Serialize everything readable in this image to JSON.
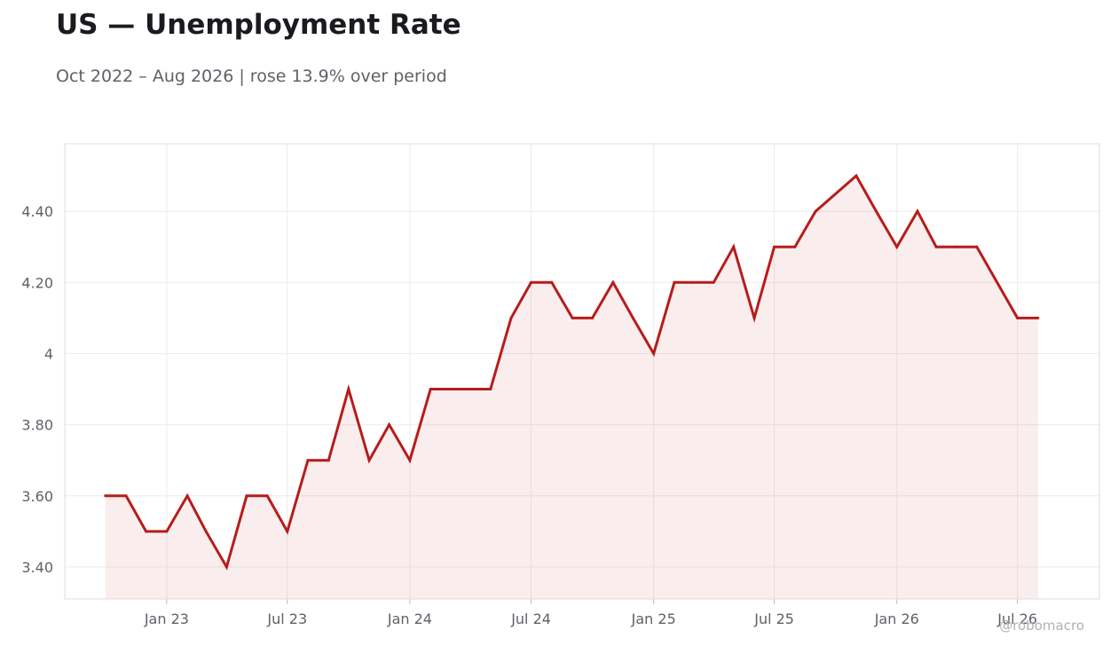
{
  "title": "US — Unemployment Rate",
  "subtitle": "Oct 2022 – Aug 2026 | rose 13.9% over period",
  "watermark": "@robomacro",
  "colors": {
    "line": "#b71c1c",
    "fill": "#b71c1c",
    "grid": "#ececec",
    "frame": "#dddddd",
    "text": "#60606a"
  },
  "chart_data": {
    "type": "area",
    "title": "US — Unemployment Rate",
    "subtitle": "Oct 2022 – Aug 2026 | rose 13.9% over period",
    "xlabel": "",
    "ylabel": "",
    "ylim": [
      3.31,
      4.59
    ],
    "xlim": [
      "2022-08-01",
      "2026-11-01"
    ],
    "grid": true,
    "legend": "none",
    "x_ticks": [
      {
        "date": "2023-01-01",
        "label": "Jan 23"
      },
      {
        "date": "2023-07-01",
        "label": "Jul 23"
      },
      {
        "date": "2024-01-01",
        "label": "Jan 24"
      },
      {
        "date": "2024-07-01",
        "label": "Jul 24"
      },
      {
        "date": "2025-01-01",
        "label": "Jan 25"
      },
      {
        "date": "2025-07-01",
        "label": "Jul 25"
      },
      {
        "date": "2026-01-01",
        "label": "Jan 26"
      },
      {
        "date": "2026-07-01",
        "label": "Jul 26"
      }
    ],
    "y_ticks": [
      {
        "value": 3.4,
        "label": "3.40"
      },
      {
        "value": 3.6,
        "label": "3.60"
      },
      {
        "value": 3.8,
        "label": "3.80"
      },
      {
        "value": 4.0,
        "label": "4"
      },
      {
        "value": 4.2,
        "label": "4.20"
      },
      {
        "value": 4.4,
        "label": "4.40"
      }
    ],
    "series": [
      {
        "x": [
          "2022-10-01",
          "2022-11-01",
          "2022-12-01",
          "2023-01-01",
          "2023-02-01",
          "2023-03-01",
          "2023-04-01",
          "2023-05-01",
          "2023-06-01",
          "2023-07-01",
          "2023-08-01",
          "2023-09-01",
          "2023-10-01",
          "2023-11-01",
          "2023-12-01",
          "2024-01-01",
          "2024-02-01",
          "2024-03-01",
          "2024-04-01",
          "2024-05-01",
          "2024-06-01",
          "2024-07-01",
          "2024-08-01",
          "2024-09-01",
          "2024-10-01",
          "2024-11-01",
          "2024-12-01",
          "2025-01-01",
          "2025-02-01",
          "2025-03-01",
          "2025-04-01",
          "2025-05-01",
          "2025-06-01",
          "2025-07-01",
          "2025-08-01",
          "2025-09-01",
          "2025-11-01",
          "2025-12-01",
          "2026-01-01",
          "2026-02-01",
          "2026-03-01",
          "2026-04-01",
          "2026-05-01",
          "2026-07-01",
          "2026-08-01"
        ],
        "values": [
          3.6,
          3.6,
          3.5,
          3.5,
          3.6,
          3.5,
          3.4,
          3.6,
          3.6,
          3.5,
          3.7,
          3.7,
          3.9,
          3.7,
          3.8,
          3.7,
          3.9,
          3.9,
          3.9,
          3.9,
          4.1,
          4.2,
          4.2,
          4.1,
          4.1,
          4.2,
          4.1,
          4.0,
          4.2,
          4.2,
          4.2,
          4.3,
          4.1,
          4.3,
          4.3,
          4.4,
          4.5,
          4.4,
          4.3,
          4.4,
          4.3,
          4.3,
          4.3,
          4.1,
          4.1
        ]
      }
    ]
  }
}
